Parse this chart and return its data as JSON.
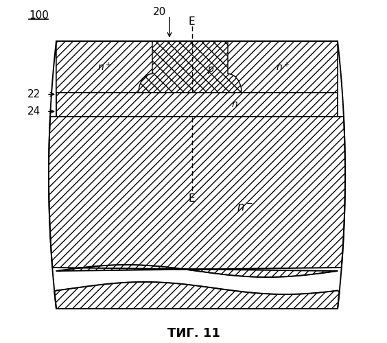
{
  "title": "ΤИГ. 11",
  "label_100": "100",
  "label_20": "20",
  "label_22": "22",
  "label_24": "24",
  "label_E_top": "E",
  "label_E_bottom": "E",
  "label_nplus_left": "n+",
  "label_nplus_right": "n+",
  "label_p": "p",
  "label_n": "n",
  "label_nminus": "n⁻",
  "fig_width": 5.64,
  "fig_height": 5.0,
  "dpi": 100,
  "bg_color": "white"
}
